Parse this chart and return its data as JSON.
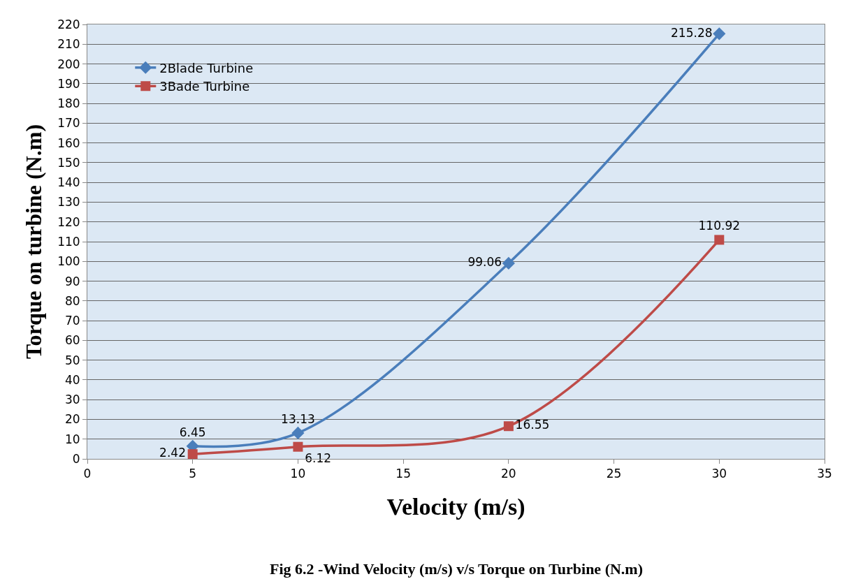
{
  "chart_data": {
    "type": "line",
    "xlabel": "Velocity (m/s)",
    "ylabel": "Torque on turbine (N.m)",
    "x": [
      5,
      10,
      20,
      30
    ],
    "series": [
      {
        "name": "2Blade Turbine",
        "color": "#4a7ebb",
        "marker": "diamond",
        "values": [
          6.45,
          13.13,
          99.06,
          215.28
        ]
      },
      {
        "name": "3Bade Turbine",
        "color": "#be4b48",
        "marker": "square",
        "values": [
          2.42,
          6.12,
          16.55,
          110.92
        ]
      }
    ],
    "xlim": [
      0,
      35
    ],
    "xticks": [
      0,
      5,
      10,
      15,
      20,
      25,
      30,
      35
    ],
    "ylim": [
      0,
      220
    ],
    "yticks": [
      0,
      10,
      20,
      30,
      40,
      50,
      60,
      70,
      80,
      90,
      100,
      110,
      120,
      130,
      140,
      150,
      160,
      170,
      180,
      190,
      200,
      210,
      220
    ],
    "grid": "y",
    "legend": "top left",
    "data_labels": true,
    "line_style": "solid",
    "annotations": [
      "Fig 6.2 -Wind Velocity (m/s) v/s Torque on Turbine (N.m)"
    ]
  }
}
